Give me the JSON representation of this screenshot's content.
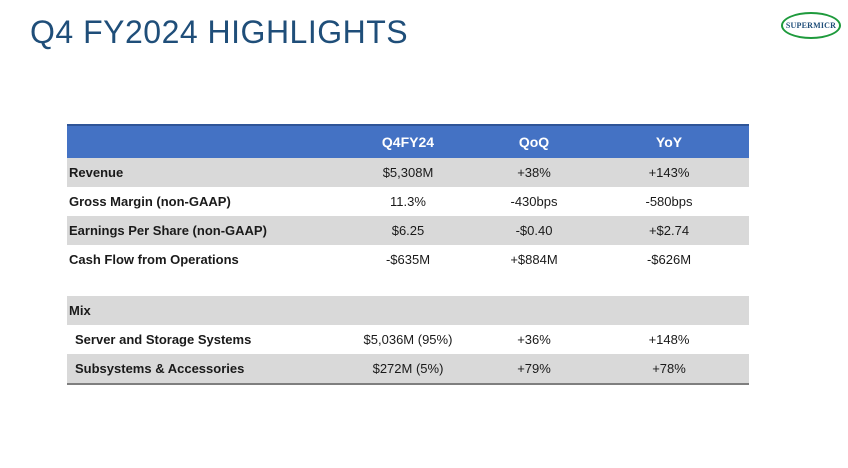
{
  "slide": {
    "title": "Q4 FY2024 HIGHLIGHTS",
    "logo_text": "SUPERMICR",
    "logo_color": "#1e9a3c",
    "title_color": "#1f4e79"
  },
  "table": {
    "header_color": "#4472c4",
    "columns": [
      "",
      "Q4FY24",
      "QoQ",
      "YoY"
    ],
    "rows": [
      {
        "label": "Revenue",
        "q4fy24": "$5,308M",
        "qoq": "+38%",
        "yoy": "+143%"
      },
      {
        "label": "Gross Margin (non-GAAP)",
        "q4fy24": "11.3%",
        "qoq": "-430bps",
        "yoy": "-580bps"
      },
      {
        "label": "Earnings Per Share (non-GAAP)",
        "q4fy24": "$6.25",
        "qoq": "-$0.40",
        "yoy": "+$2.74"
      },
      {
        "label": "Cash Flow from Operations",
        "q4fy24": "-$635M",
        "qoq": "+$884M",
        "yoy": "-$626M"
      }
    ],
    "mix": {
      "label": "Mix",
      "rows": [
        {
          "label": "Server and Storage Systems",
          "q4fy24": "$5,036M (95%)",
          "qoq": "+36%",
          "yoy": "+148%"
        },
        {
          "label": "Subsystems & Accessories",
          "q4fy24": "$272M (5%)",
          "qoq": "+79%",
          "yoy": "+78%"
        }
      ]
    }
  }
}
